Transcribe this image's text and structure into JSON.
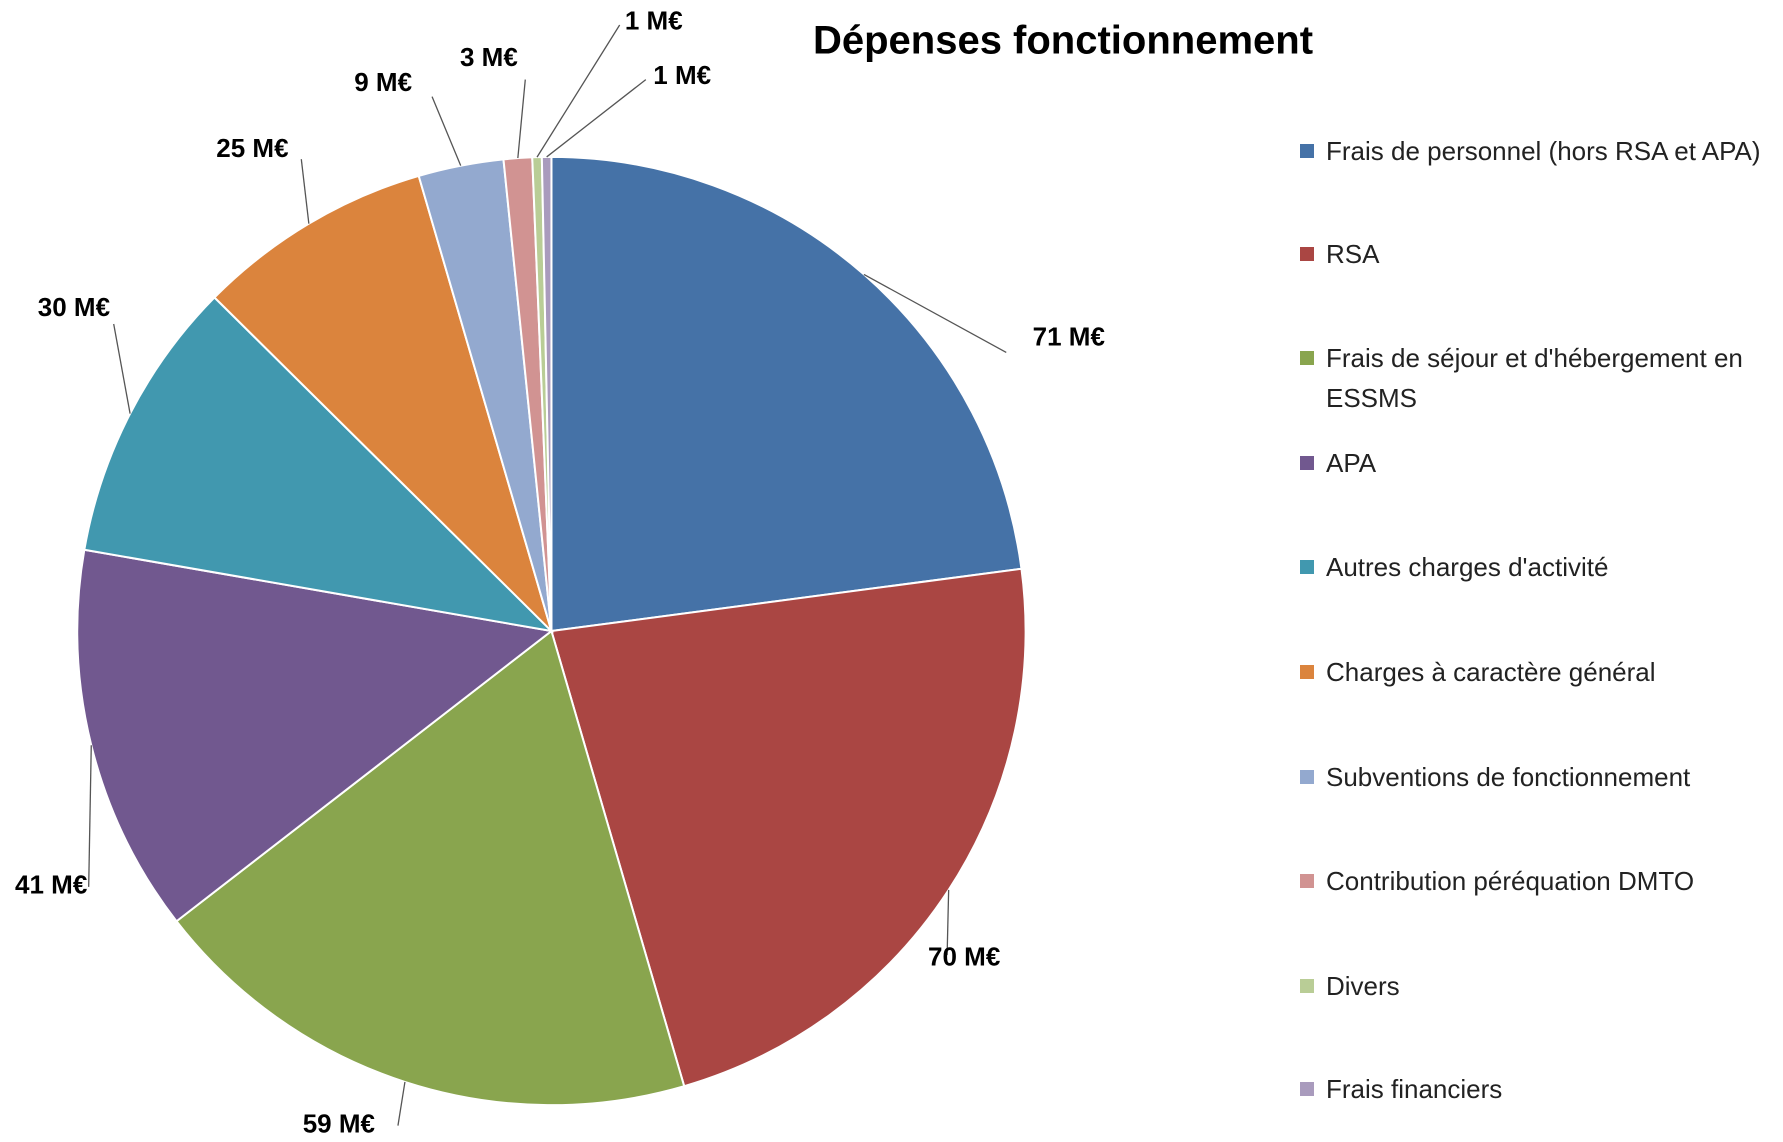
{
  "chart_data": {
    "type": "pie",
    "title": "Dépenses fonctionnement",
    "categories": [
      "Frais de personnel (hors RSA et APA)",
      "RSA",
      "Frais de séjour et d'hébergement en ESSMS",
      "APA",
      "Autres charges d'activité",
      "Charges à caractère général",
      "Subventions de fonctionnement",
      "Contribution péréquation DMTO",
      "Divers",
      "Frais financiers"
    ],
    "values": [
      71,
      70,
      59,
      41,
      30,
      25,
      9,
      3,
      1,
      1
    ],
    "value_labels": [
      "71 M€",
      "70 M€",
      "59 M€",
      "41 M€",
      "30 M€",
      "25 M€",
      "9 M€",
      "3 M€",
      "1 M€",
      "1 M€"
    ],
    "colors": [
      "#4572a7",
      "#aa4643",
      "#89a54e",
      "#71588f",
      "#4198af",
      "#db843d",
      "#93a9cf",
      "#d19392",
      "#b9cd96",
      "#a99bbd"
    ],
    "legend": "right"
  }
}
